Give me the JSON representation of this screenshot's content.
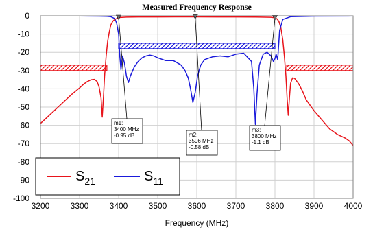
{
  "chart_data": {
    "type": "line",
    "title": "Measured Frequency Response",
    "xlabel": "Frequency (MHz)",
    "ylabel": "",
    "xlim": [
      3200,
      4000
    ],
    "ylim": [
      -100,
      0
    ],
    "xticks": [
      3200,
      3300,
      3400,
      3500,
      3600,
      3700,
      3800,
      3900,
      4000
    ],
    "yticks": [
      0,
      -10,
      -20,
      -30,
      -40,
      -50,
      -60,
      -70,
      -80,
      -90,
      -100
    ],
    "grid": true,
    "legend_position": "bottom-left",
    "series": [
      {
        "name": "S21",
        "color": "#e8141b",
        "x": [
          3200,
          3220,
          3240,
          3260,
          3280,
          3300,
          3310,
          3320,
          3330,
          3338,
          3345,
          3350,
          3355,
          3358,
          3361,
          3364,
          3368,
          3372,
          3376,
          3380,
          3385,
          3390,
          3395,
          3400,
          3420,
          3450,
          3500,
          3550,
          3600,
          3650,
          3700,
          3750,
          3790,
          3800,
          3805,
          3810,
          3815,
          3820,
          3824,
          3828,
          3831,
          3834,
          3837,
          3840,
          3845,
          3850,
          3860,
          3870,
          3880,
          3900,
          3920,
          3940,
          3960,
          3980,
          3990,
          4000
        ],
        "y": [
          -59,
          -55,
          -51,
          -47,
          -43,
          -39.5,
          -37.5,
          -36,
          -35,
          -34.8,
          -36,
          -39,
          -45,
          -55.5,
          -45,
          -33,
          -22,
          -14,
          -9,
          -5,
          -3,
          -2,
          -1.5,
          -0.95,
          -0.7,
          -0.6,
          -0.6,
          -0.58,
          -0.58,
          -0.6,
          -0.6,
          -0.65,
          -0.8,
          -1.1,
          -1.6,
          -3,
          -6.5,
          -13,
          -22,
          -33,
          -45,
          -54.5,
          -45,
          -37,
          -34,
          -34.2,
          -37,
          -41,
          -46,
          -52,
          -57,
          -62,
          -65,
          -67,
          -68.5,
          -71
        ]
      },
      {
        "name": "S11",
        "color": "#1a1adb",
        "x": [
          3200,
          3300,
          3350,
          3370,
          3380,
          3390,
          3395,
          3400,
          3403,
          3406,
          3410,
          3415,
          3420,
          3425,
          3430,
          3440,
          3450,
          3460,
          3470,
          3480,
          3490,
          3500,
          3520,
          3540,
          3560,
          3570,
          3578,
          3584,
          3590,
          3596,
          3602,
          3610,
          3620,
          3640,
          3660,
          3680,
          3700,
          3720,
          3740,
          3746,
          3750,
          3754,
          3760,
          3770,
          3780,
          3790,
          3796,
          3800,
          3803,
          3807,
          3812,
          3820,
          3840,
          3900,
          4000
        ],
        "y": [
          -0.05,
          -0.1,
          -0.2,
          -0.3,
          -0.5,
          -1.5,
          -4,
          -10,
          -22,
          -29.5,
          -22,
          -26,
          -33,
          -36.5,
          -33,
          -28,
          -25,
          -23,
          -22,
          -21.5,
          -22,
          -23,
          -24.5,
          -24.5,
          -27,
          -30,
          -34,
          -40,
          -47.5,
          -42,
          -33,
          -27,
          -24,
          -22.5,
          -22,
          -22.5,
          -21,
          -20.5,
          -25,
          -40,
          -59.5,
          -43,
          -27,
          -21,
          -20,
          -22,
          -25,
          -23.5,
          -21,
          -24,
          -8,
          -2,
          -0.5,
          -0.2,
          -0.1
        ]
      }
    ],
    "markers": [
      {
        "id": "m1",
        "x": 3400,
        "y": -0.95,
        "label": [
          "m1:",
          "3400 MHz",
          "-0.95 dB"
        ]
      },
      {
        "id": "m2",
        "x": 3596,
        "y": -0.58,
        "label": [
          "m2:",
          "3596 MHz",
          "-0.58 dB"
        ]
      },
      {
        "id": "m3",
        "x": 3800,
        "y": -1.1,
        "label": [
          "m3:",
          "3800 MHz",
          "-1.1 dB"
        ]
      }
    ],
    "spec_regions": [
      {
        "kind": "S11 limit",
        "color": "#1a1adb",
        "x": [
          3400,
          3800
        ],
        "y": [
          -15,
          -18
        ]
      },
      {
        "kind": "S21 rejection",
        "color": "#e8141b",
        "x": [
          3200,
          3370
        ],
        "y": [
          -27,
          -30
        ]
      },
      {
        "kind": "S21 rejection",
        "color": "#e8141b",
        "x": [
          3830,
          4000
        ],
        "y": [
          -27,
          -30
        ]
      }
    ],
    "legend": {
      "entries": [
        {
          "series": "S21",
          "main": "S",
          "sub": "21"
        },
        {
          "series": "S11",
          "main": "S",
          "sub": "11"
        }
      ]
    }
  }
}
